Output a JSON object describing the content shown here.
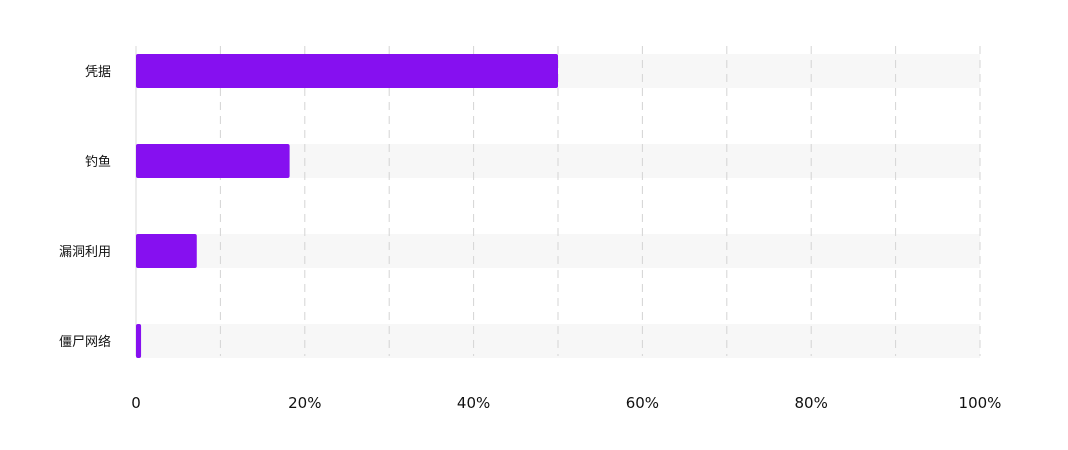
{
  "chart_data": {
    "type": "bar",
    "orientation": "horizontal",
    "categories": [
      "凭据",
      "钓鱼",
      "漏洞利用",
      "僵尸网络"
    ],
    "values": [
      50,
      18.2,
      7.2,
      0.6
    ],
    "xlim": [
      0,
      100
    ],
    "x_ticks": [
      {
        "value": 0,
        "label": "0"
      },
      {
        "value": 20,
        "label": "20%"
      },
      {
        "value": 40,
        "label": "40%"
      },
      {
        "value": 60,
        "label": "60%"
      },
      {
        "value": 80,
        "label": "80%"
      },
      {
        "value": 100,
        "label": "100%"
      }
    ],
    "gridlines": [
      10,
      20,
      30,
      40,
      50,
      60,
      70,
      80,
      90,
      100
    ],
    "grid": true,
    "bar_color": "#8610F0",
    "track_color": "#F7F7F7",
    "title": "",
    "xlabel": "",
    "ylabel": ""
  }
}
